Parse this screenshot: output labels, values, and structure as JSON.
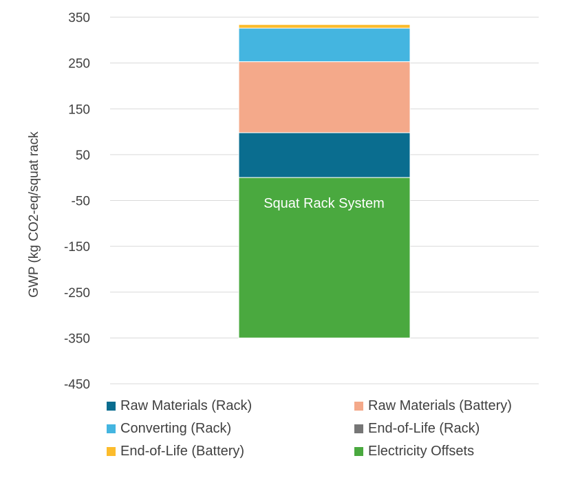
{
  "chart_data": {
    "type": "stacked-bar",
    "title": "",
    "xlabel": "",
    "ylabel": "GWP (kg CO2-eq/squat rack",
    "ylim": [
      -450,
      350
    ],
    "yticks": [
      350,
      250,
      150,
      50,
      -50,
      -150,
      -250,
      -350,
      -450
    ],
    "grid": true,
    "legend_position": "bottom",
    "categories": [
      "Squat Rack System"
    ],
    "series": [
      {
        "name": "Raw Materials (Rack)",
        "values": [
          98
        ],
        "color": "#0a6d8f"
      },
      {
        "name": "Raw Materials (Battery)",
        "values": [
          155
        ],
        "color": "#f4a98a"
      },
      {
        "name": "Converting (Rack)",
        "values": [
          73
        ],
        "color": "#44b5e0"
      },
      {
        "name": "End-of-Life (Rack)",
        "values": [
          0
        ],
        "color": "#767676"
      },
      {
        "name": "End-of-Life (Battery)",
        "values": [
          8
        ],
        "color": "#fcbc2c"
      },
      {
        "name": "Electricity  Offsets",
        "values": [
          -350
        ],
        "color": "#4aa93f"
      }
    ],
    "legend_order": [
      "Raw Materials (Rack)",
      "Raw Materials (Battery)",
      "Converting (Rack)",
      "End-of-Life (Rack)",
      "End-of-Life (Battery)",
      "Electricity  Offsets"
    ]
  }
}
